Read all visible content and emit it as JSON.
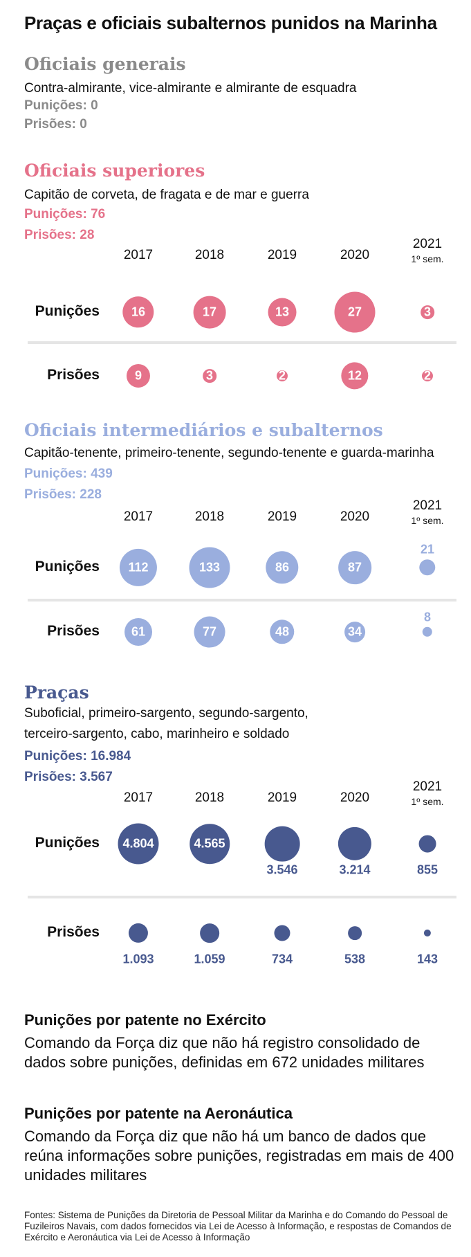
{
  "title": "Praças e oficiais subalternos punidos na Marinha",
  "years": [
    "2017",
    "2018",
    "2019",
    "2020",
    "2021"
  ],
  "year_note": "1º sem.",
  "row_labels": {
    "punicoes": "Punições",
    "prisoes": "Prisões"
  },
  "sections": {
    "generais": {
      "title": "Oficiais generais",
      "subtitle": "Contra-almirante, vice-almirante e almirante de esquadra",
      "punicoes_total": "Punições: 0",
      "prisoes_total": "Prisões: 0",
      "color": "#8a8a8a"
    },
    "superiores": {
      "title": "Oficiais superiores",
      "subtitle": "Capitão de corveta, de fragata e de mar e guerra",
      "punicoes_total": "Punições: 76",
      "prisoes_total": "Prisões: 28",
      "color": "#e5728a"
    },
    "intermediarios": {
      "title": "Oficiais intermediários e subalternos",
      "subtitle": "Capitão-tenente, primeiro-tenente, segundo-tenente e guarda-marinha",
      "punicoes_total": "Punições: 439",
      "prisoes_total": "Prisões: 228",
      "color": "#9aaede"
    },
    "pracas": {
      "title": "Praças",
      "subtitle": "Suboficial, primeiro-sargento, segundo-sargento, terceiro-sargento, cabo, marinheiro e soldado",
      "punicoes_total": "Punições: 16.984",
      "prisoes_total": "Prisões: 3.567",
      "color": "#48598f"
    }
  },
  "chart_data": [
    {
      "type": "bubble",
      "title": "Oficiais superiores",
      "categories": [
        "2017",
        "2018",
        "2019",
        "2020",
        "2021 1º sem."
      ],
      "series": [
        {
          "name": "Punições",
          "values": [
            16,
            17,
            13,
            27,
            3
          ],
          "labels": [
            "16",
            "17",
            "13",
            "27",
            "3"
          ]
        },
        {
          "name": "Prisões",
          "values": [
            9,
            3,
            2,
            12,
            2
          ],
          "labels": [
            "9",
            "3",
            "2",
            "12",
            "2"
          ]
        }
      ],
      "color": "#e5728a"
    },
    {
      "type": "bubble",
      "title": "Oficiais intermediários e subalternos",
      "categories": [
        "2017",
        "2018",
        "2019",
        "2020",
        "2021 1º sem."
      ],
      "series": [
        {
          "name": "Punições",
          "values": [
            112,
            133,
            86,
            87,
            21
          ],
          "labels": [
            "112",
            "133",
            "86",
            "87",
            "21"
          ]
        },
        {
          "name": "Prisões",
          "values": [
            61,
            77,
            48,
            34,
            8
          ],
          "labels": [
            "61",
            "77",
            "48",
            "34",
            "8"
          ]
        }
      ],
      "color": "#9aaede"
    },
    {
      "type": "bubble",
      "title": "Praças",
      "categories": [
        "2017",
        "2018",
        "2019",
        "2020",
        "2021 1º sem."
      ],
      "series": [
        {
          "name": "Punições",
          "values": [
            4804,
            4565,
            3546,
            3214,
            855
          ],
          "labels": [
            "4.804",
            "4.565",
            "3.546",
            "3.214",
            "855"
          ]
        },
        {
          "name": "Prisões",
          "values": [
            1093,
            1059,
            734,
            538,
            143
          ],
          "labels": [
            "1.093",
            "1.059",
            "734",
            "538",
            "143"
          ]
        }
      ],
      "color": "#48598f"
    }
  ],
  "exercito": {
    "title": "Punições por patente no Exército",
    "text": "Comando da Força diz que não há registro consolidado de dados sobre punições, definidas em 672 unidades militares"
  },
  "aeronautica": {
    "title": "Punições por patente na Aeronáutica",
    "text": "Comando da Força diz que não há um banco de dados que reúna informações sobre punições, registradas em mais de 400 unidades militares"
  },
  "sources": "Fontes: Sistema de Punições da Diretoria de Pessoal Militar da Marinha e do Comando do Pessoal de Fuzileiros Navais, com dados fornecidos via Lei de Acesso à Informação, e respostas de Comandos de Exército e Aeronáutica via Lei de Acesso à Informação"
}
